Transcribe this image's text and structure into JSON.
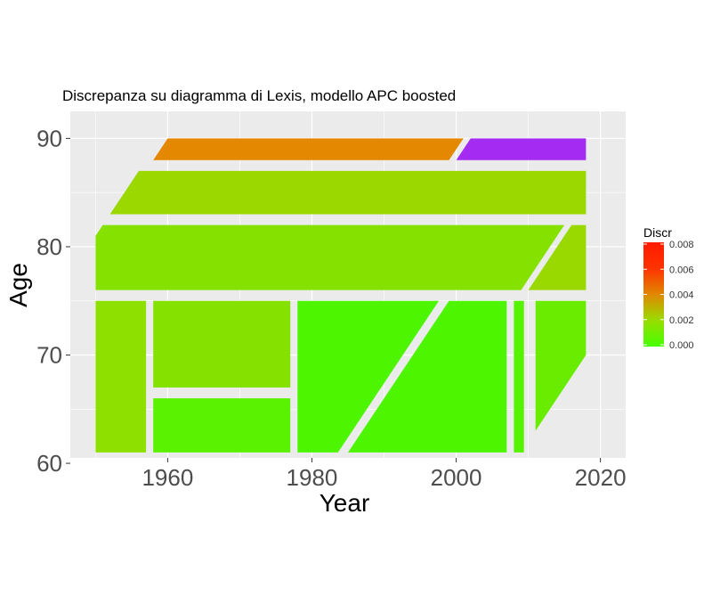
{
  "chart_data": {
    "type": "polygon-map",
    "title": "Discrepanza su diagramma di Lexis, modello APC boosted",
    "xlabel": "Year",
    "ylabel": "Age",
    "xlim": [
      1946.5,
      2023.5
    ],
    "ylim": [
      60.5,
      92.5
    ],
    "x_ticks": [
      1960,
      1980,
      2000,
      2020
    ],
    "y_ticks": [
      60,
      70,
      80,
      90
    ],
    "grid": true,
    "legend": {
      "title": "Discr",
      "position": "right",
      "range": [
        0,
        0.008
      ],
      "ticks": [
        "0.000",
        "0.002",
        "0.004",
        "0.006",
        "0.008"
      ],
      "gradient": [
        "#44ff00",
        "#99dd00",
        "#e08800",
        "#ff3300",
        "#ff1a00"
      ]
    },
    "regions": [
      {
        "name": "age-61-75-years-1950-1957",
        "color": "#8ee000",
        "points": [
          [
            1950,
            61
          ],
          [
            1957,
            61
          ],
          [
            1957,
            75
          ],
          [
            1950,
            75
          ]
        ]
      },
      {
        "name": "age-67-75-years-1958-1977",
        "color": "#85e100",
        "points": [
          [
            1958,
            67
          ],
          [
            1977,
            67
          ],
          [
            1977,
            75
          ],
          [
            1958,
            75
          ]
        ]
      },
      {
        "name": "age-61-66-years-1958-1977",
        "color": "#5af200",
        "points": [
          [
            1958,
            61
          ],
          [
            1977,
            61
          ],
          [
            1977,
            66
          ],
          [
            1958,
            66
          ]
        ]
      },
      {
        "name": "cohort-band-1978-1999",
        "color": "#4df500",
        "points": [
          [
            1978,
            61
          ],
          [
            1983.6,
            61
          ],
          [
            1997.6,
            75
          ],
          [
            1978,
            75
          ]
        ]
      },
      {
        "name": "cohort-band-1985-2007",
        "color": "#4df500",
        "points": [
          [
            1985,
            61
          ],
          [
            2007,
            61
          ],
          [
            2007,
            75
          ],
          [
            1999,
            75
          ]
        ]
      },
      {
        "name": "age-61-75-years-2008-2009",
        "color": "#55f300",
        "points": [
          [
            2008,
            61
          ],
          [
            2009.4,
            61
          ],
          [
            2009.4,
            75
          ],
          [
            2008,
            75
          ]
        ]
      },
      {
        "name": "age-63-75-years-2011-2018",
        "color": "#6aec00",
        "points": [
          [
            2011,
            63
          ],
          [
            2018,
            70
          ],
          [
            2018,
            75
          ],
          [
            2011,
            75
          ]
        ]
      },
      {
        "name": "age-76-82-years-1950-2015",
        "color": "#85e100",
        "points": [
          [
            1950,
            76
          ],
          [
            2009,
            76
          ],
          [
            2015,
            82
          ],
          [
            1951,
            82
          ],
          [
            1950,
            81
          ]
        ]
      },
      {
        "name": "age-76-82-years-2010-2018",
        "color": "#99d900",
        "points": [
          [
            2010,
            76
          ],
          [
            2018,
            76
          ],
          [
            2018,
            82
          ],
          [
            2016,
            82
          ]
        ]
      },
      {
        "name": "age-83-87-years-1952-2018",
        "color": "#9bd800",
        "points": [
          [
            1952,
            83
          ],
          [
            2018,
            83
          ],
          [
            2018,
            87
          ],
          [
            1956,
            87
          ]
        ]
      },
      {
        "name": "age-88-90-years-1958-2001",
        "color": "#e38800",
        "points": [
          [
            1958,
            88
          ],
          [
            1999,
            88
          ],
          [
            2001,
            90
          ],
          [
            1960,
            90
          ]
        ]
      },
      {
        "name": "age-88-90-years-2000-2018",
        "color": "#a42cf2",
        "points": [
          [
            2000,
            88
          ],
          [
            2018,
            88
          ],
          [
            2018,
            90
          ],
          [
            2002,
            90
          ]
        ]
      }
    ]
  }
}
